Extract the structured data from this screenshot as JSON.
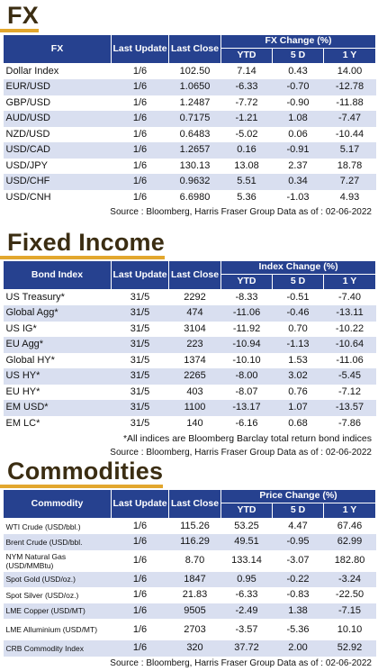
{
  "fx": {
    "title": "FX",
    "headers": {
      "name": "FX",
      "last_update": "Last Update",
      "last_close": "Last Close",
      "change": "FX Change (%)",
      "ytd": "YTD",
      "d5": "5 D",
      "y1": "1 Y"
    },
    "rows": [
      {
        "name": "Dollar Index",
        "update": "1/6",
        "close": "102.50",
        "ytd": "7.14",
        "d5": "0.43",
        "y1": "14.00"
      },
      {
        "name": "EUR/USD",
        "update": "1/6",
        "close": "1.0650",
        "ytd": "-6.33",
        "d5": "-0.70",
        "y1": "-12.78"
      },
      {
        "name": "GBP/USD",
        "update": "1/6",
        "close": "1.2487",
        "ytd": "-7.72",
        "d5": "-0.90",
        "y1": "-11.88"
      },
      {
        "name": "AUD/USD",
        "update": "1/6",
        "close": "0.7175",
        "ytd": "-1.21",
        "d5": "1.08",
        "y1": "-7.47"
      },
      {
        "name": "NZD/USD",
        "update": "1/6",
        "close": "0.6483",
        "ytd": "-5.02",
        "d5": "0.06",
        "y1": "-10.44"
      },
      {
        "name": "USD/CAD",
        "update": "1/6",
        "close": "1.2657",
        "ytd": "0.16",
        "d5": "-0.91",
        "y1": "5.17"
      },
      {
        "name": "USD/JPY",
        "update": "1/6",
        "close": "130.13",
        "ytd": "13.08",
        "d5": "2.37",
        "y1": "18.78"
      },
      {
        "name": "USD/CHF",
        "update": "1/6",
        "close": "0.9632",
        "ytd": "5.51",
        "d5": "0.34",
        "y1": "7.27"
      },
      {
        "name": "USD/CNH",
        "update": "1/6",
        "close": "6.6980",
        "ytd": "5.36",
        "d5": "-1.03",
        "y1": "4.93"
      }
    ],
    "source": "Source : Bloomberg, Harris Fraser Group Data as of : 02-06-2022"
  },
  "fixed_income": {
    "title": "Fixed Income",
    "headers": {
      "name": "Bond Index",
      "last_update": "Last Update",
      "last_close": "Last Close",
      "change": "Index Change (%)",
      "ytd": "YTD",
      "d5": "5 D",
      "y1": "1 Y"
    },
    "rows": [
      {
        "name": "US Treasury*",
        "update": "31/5",
        "close": "2292",
        "ytd": "-8.33",
        "d5": "-0.51",
        "y1": "-7.40"
      },
      {
        "name": "Global Agg*",
        "update": "31/5",
        "close": "474",
        "ytd": "-11.06",
        "d5": "-0.46",
        "y1": "-13.11"
      },
      {
        "name": "US IG*",
        "update": "31/5",
        "close": "3104",
        "ytd": "-11.92",
        "d5": "0.70",
        "y1": "-10.22"
      },
      {
        "name": "EU Agg*",
        "update": "31/5",
        "close": "223",
        "ytd": "-10.94",
        "d5": "-1.13",
        "y1": "-10.64"
      },
      {
        "name": "Global HY*",
        "update": "31/5",
        "close": "1374",
        "ytd": "-10.10",
        "d5": "1.53",
        "y1": "-11.06"
      },
      {
        "name": "US HY*",
        "update": "31/5",
        "close": "2265",
        "ytd": "-8.00",
        "d5": "3.02",
        "y1": "-5.45"
      },
      {
        "name": "EU HY*",
        "update": "31/5",
        "close": "403",
        "ytd": "-8.07",
        "d5": "0.76",
        "y1": "-7.12"
      },
      {
        "name": "EM USD*",
        "update": "31/5",
        "close": "1100",
        "ytd": "-13.17",
        "d5": "1.07",
        "y1": "-13.57"
      },
      {
        "name": "EM LC*",
        "update": "31/5",
        "close": "140",
        "ytd": "-6.16",
        "d5": "0.68",
        "y1": "-7.86"
      }
    ],
    "note": "*All indices are Bloomberg Barclay total return bond indices",
    "source": "Source : Bloomberg, Harris Fraser Group Data as of : 02-06-2022"
  },
  "commodities": {
    "title": "Commodities",
    "headers": {
      "name": "Commodity",
      "last_update": "Last Update",
      "last_close": "Last Close",
      "change": "Price Change (%)",
      "ytd": "YTD",
      "d5": "5 D",
      "y1": "1 Y"
    },
    "rows": [
      {
        "name": "WTI Crude (USD/bbl.)",
        "update": "1/6",
        "close": "115.26",
        "ytd": "53.25",
        "d5": "4.47",
        "y1": "67.46"
      },
      {
        "name": "Brent Crude (USD/bbl.",
        "update": "1/6",
        "close": "116.29",
        "ytd": "49.51",
        "d5": "-0.95",
        "y1": "62.99"
      },
      {
        "name": "NYM Natural Gas (USD/MMBtu)",
        "update": "1/6",
        "close": "8.70",
        "ytd": "133.14",
        "d5": "-3.07",
        "y1": "182.80"
      },
      {
        "name": "Spot Gold (USD/oz.)",
        "update": "1/6",
        "close": "1847",
        "ytd": "0.95",
        "d5": "-0.22",
        "y1": "-3.24"
      },
      {
        "name": "Spot Silver (USD/oz.)",
        "update": "1/6",
        "close": "21.83",
        "ytd": "-6.33",
        "d5": "-0.83",
        "y1": "-22.50"
      },
      {
        "name": "LME Copper (USD/MT)",
        "update": "1/6",
        "close": "9505",
        "ytd": "-2.49",
        "d5": "1.38",
        "y1": "-7.15"
      },
      {
        "name": "LME Alluminium (USD/MT)",
        "update": "1/6",
        "close": "2703",
        "ytd": "-3.57",
        "d5": "-5.36",
        "y1": "10.10"
      },
      {
        "name": "CRB Commodity Index",
        "update": "1/6",
        "close": "320",
        "ytd": "37.72",
        "d5": "2.00",
        "y1": "52.92"
      }
    ],
    "source": "Source : Bloomberg, Harris Fraser Group Data as of : 02-06-2022"
  }
}
